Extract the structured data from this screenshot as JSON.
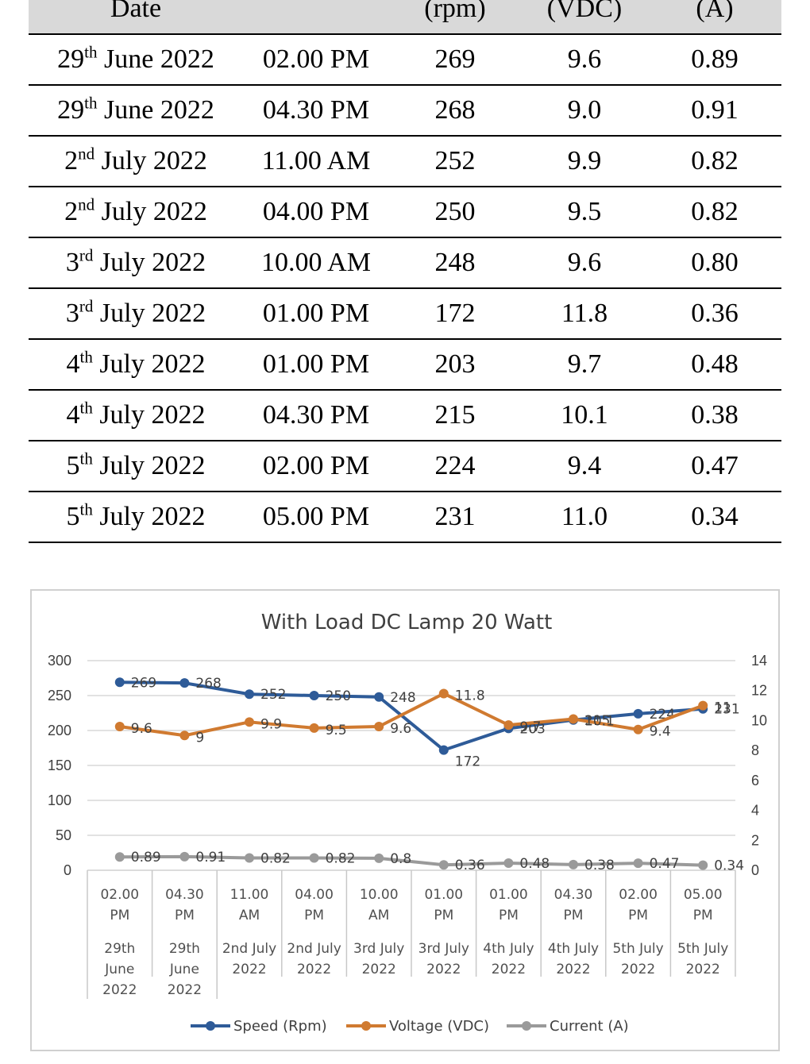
{
  "table": {
    "headers": [
      {
        "label": "Date"
      },
      {
        "label": ""
      },
      {
        "label": "(rpm)"
      },
      {
        "label": "(VDC)"
      },
      {
        "label": "(A)"
      }
    ],
    "rows": [
      {
        "day": "29",
        "suffix": "th",
        "month_year": " June 2022",
        "time": "02.00 PM",
        "speed": "269",
        "voltage": "9.6",
        "current": "0.89"
      },
      {
        "day": "29",
        "suffix": "th",
        "month_year": " June 2022",
        "time": "04.30 PM",
        "speed": "268",
        "voltage": "9.0",
        "current": "0.91"
      },
      {
        "day": "2",
        "suffix": "nd",
        "month_year": " July 2022",
        "time": "11.00 AM",
        "speed": "252",
        "voltage": "9.9",
        "current": "0.82"
      },
      {
        "day": "2",
        "suffix": "nd",
        "month_year": " July 2022",
        "time": "04.00 PM",
        "speed": "250",
        "voltage": "9.5",
        "current": "0.82"
      },
      {
        "day": "3",
        "suffix": "rd",
        "month_year": " July 2022",
        "time": "10.00 AM",
        "speed": "248",
        "voltage": "9.6",
        "current": "0.80"
      },
      {
        "day": "3",
        "suffix": "rd",
        "month_year": " July 2022",
        "time": "01.00 PM",
        "speed": "172",
        "voltage": "11.8",
        "current": "0.36"
      },
      {
        "day": "4",
        "suffix": "th",
        "month_year": " July 2022",
        "time": "01.00 PM",
        "speed": "203",
        "voltage": "9.7",
        "current": "0.48"
      },
      {
        "day": "4",
        "suffix": "th",
        "month_year": " July 2022",
        "time": "04.30 PM",
        "speed": "215",
        "voltage": "10.1",
        "current": "0.38"
      },
      {
        "day": "5",
        "suffix": "th",
        "month_year": " July 2022",
        "time": "02.00 PM",
        "speed": "224",
        "voltage": "9.4",
        "current": "0.47"
      },
      {
        "day": "5",
        "suffix": "th",
        "month_year": " July 2022",
        "time": "05.00 PM",
        "speed": "231",
        "voltage": "11.0",
        "current": "0.34"
      }
    ]
  },
  "chart_data": {
    "type": "line",
    "title": "With Load DC Lamp 20 Watt",
    "categories": [
      {
        "time": [
          "02.00",
          "PM"
        ],
        "date": [
          "29th",
          "June",
          "2022"
        ]
      },
      {
        "time": [
          "04.30",
          "PM"
        ],
        "date": [
          "29th",
          "June",
          "2022"
        ]
      },
      {
        "time": [
          "11.00",
          "AM"
        ],
        "date": [
          "2nd July",
          "2022"
        ]
      },
      {
        "time": [
          "04.00",
          "PM"
        ],
        "date": [
          "2nd July",
          "2022"
        ]
      },
      {
        "time": [
          "10.00",
          "AM"
        ],
        "date": [
          "3rd July",
          "2022"
        ]
      },
      {
        "time": [
          "01.00",
          "PM"
        ],
        "date": [
          "3rd July",
          "2022"
        ]
      },
      {
        "time": [
          "01.00",
          "PM"
        ],
        "date": [
          "4th July",
          "2022"
        ]
      },
      {
        "time": [
          "04.30",
          "PM"
        ],
        "date": [
          "4th July",
          "2022"
        ]
      },
      {
        "time": [
          "02.00",
          "PM"
        ],
        "date": [
          "5th July",
          "2022"
        ]
      },
      {
        "time": [
          "05.00",
          "PM"
        ],
        "date": [
          "5th July",
          "2022"
        ]
      }
    ],
    "y_left": {
      "min": 0,
      "max": 300,
      "ticks": [
        "0",
        "50",
        "100",
        "150",
        "200",
        "250",
        "300"
      ]
    },
    "y_right": {
      "min": 0,
      "max": 14,
      "ticks": [
        "0",
        "2",
        "4",
        "6",
        "8",
        "10",
        "12",
        "14"
      ]
    },
    "grid": true,
    "legend_position": "bottom",
    "series": [
      {
        "name": "Speed (Rpm)",
        "axis": "left",
        "color": "#2e5b98",
        "values": [
          269,
          268,
          252,
          250,
          248,
          172,
          203,
          215,
          224,
          231
        ],
        "labels": [
          "269",
          "268",
          "252",
          "250",
          "248",
          "172",
          "203",
          "215",
          "224",
          "231"
        ]
      },
      {
        "name": "Voltage (VDC)",
        "axis": "right",
        "color": "#d07a30",
        "values": [
          9.6,
          9.0,
          9.9,
          9.5,
          9.6,
          11.8,
          9.7,
          10.1,
          9.4,
          11.0
        ],
        "labels": [
          "9.6",
          "9",
          "9.9",
          "9.5",
          "9.6",
          "11.8",
          "9.7",
          "10.1",
          "9.4",
          "11"
        ]
      },
      {
        "name": "Current (A)",
        "axis": "right",
        "color": "#9a9a9a",
        "values": [
          0.89,
          0.91,
          0.82,
          0.82,
          0.8,
          0.36,
          0.48,
          0.38,
          0.47,
          0.34
        ],
        "labels": [
          "0.89",
          "0.91",
          "0.82",
          "0.82",
          "0.8",
          "0.36",
          "0.48",
          "0.38",
          "0.47",
          "0.34"
        ]
      }
    ]
  }
}
